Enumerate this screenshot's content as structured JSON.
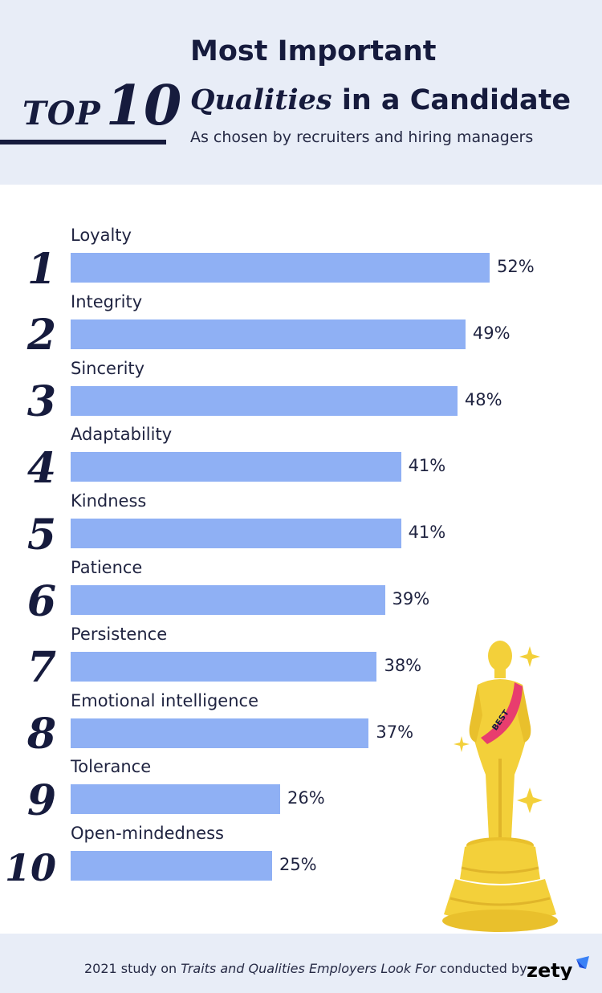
{
  "header": {
    "badge_top": "TOP",
    "badge_ten": "10",
    "title_line1": "Most Important",
    "title_italic": "Qualities",
    "title_rest": " in a Candidate",
    "subtitle": "As chosen by recruiters and hiring managers"
  },
  "chart_data": {
    "type": "bar",
    "orientation": "horizontal",
    "title": "Most Important Qualities in a Candidate",
    "subtitle": "As chosen by recruiters and hiring managers",
    "ranks": [
      "1",
      "2",
      "3",
      "4",
      "5",
      "6",
      "7",
      "8",
      "9",
      "10"
    ],
    "categories": [
      "Loyalty",
      "Integrity",
      "Sincerity",
      "Adaptability",
      "Kindness",
      "Patience",
      "Persistence",
      "Emotional intelligence",
      "Tolerance",
      "Open-mindedness"
    ],
    "values": [
      52,
      49,
      48,
      41,
      41,
      39,
      38,
      37,
      26,
      25
    ],
    "value_labels": [
      "52%",
      "49%",
      "48%",
      "41%",
      "41%",
      "39%",
      "38%",
      "37%",
      "26%",
      "25%"
    ],
    "unit": "%",
    "bar_color": "#8fb0f4",
    "grid": false,
    "legend": "none"
  },
  "illustration": {
    "sash_text": "BEST"
  },
  "footer": {
    "source_prefix": "2021 study on ",
    "source_title": "Traits and Qualities Employers Look For",
    "source_suffix": " conducted by",
    "brand": "zety"
  },
  "colors": {
    "navy": "#161b3d",
    "panel": "#e8edf7",
    "bar": "#8fb0f4",
    "gold": "#f3d03a",
    "sash": "#e83d6e"
  }
}
